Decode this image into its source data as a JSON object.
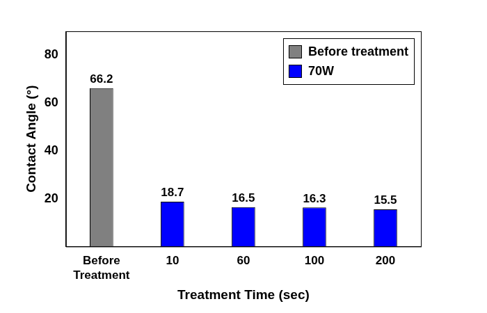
{
  "chart_data": {
    "type": "bar",
    "x_label": "Treatment Time (sec)",
    "y_label": "Contact Angle (°)",
    "categories": [
      "Before Treatment",
      "10",
      "60",
      "100",
      "200"
    ],
    "series": [
      {
        "name": "Before treatment",
        "color": "#808080",
        "values": [
          66.2,
          null,
          null,
          null,
          null
        ]
      },
      {
        "name": "70W",
        "color": "#0000ff",
        "values": [
          null,
          18.7,
          16.5,
          16.3,
          15.5
        ]
      }
    ],
    "ylim": [
      0,
      90
    ],
    "yticks": [
      20,
      40,
      60,
      80
    ],
    "grid": false,
    "legend": "upper right",
    "data_labels": true
  }
}
